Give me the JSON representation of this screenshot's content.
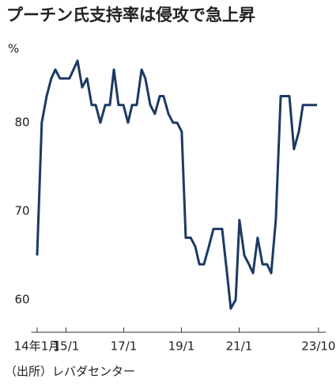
{
  "chart_data": {
    "type": "line",
    "title": "プーチン氏支持率は侵攻で急上昇",
    "y_label": "%",
    "source": "（出所）レバダセンター",
    "x": [
      2014.0,
      2014.16,
      2014.33,
      2014.49,
      2014.63,
      2014.79,
      2014.96,
      2015.12,
      2015.26,
      2015.4,
      2015.56,
      2015.73,
      2015.89,
      2016.03,
      2016.19,
      2016.36,
      2016.52,
      2016.66,
      2016.82,
      2016.99,
      2017.15,
      2017.29,
      2017.45,
      2017.62,
      2017.75,
      2017.92,
      2018.08,
      2018.25,
      2018.38,
      2018.55,
      2018.71,
      2018.85,
      2019.01,
      2019.15,
      2019.32,
      2019.48,
      2019.62,
      2019.78,
      2019.95,
      2020.11,
      2020.27,
      2020.41,
      2020.58,
      2020.71,
      2020.88,
      2021.01,
      2021.18,
      2021.34,
      2021.48,
      2021.64,
      2021.81,
      2021.97,
      2022.11,
      2022.27,
      2022.44,
      2022.58,
      2022.74,
      2022.9,
      2023.07,
      2023.21,
      2023.37,
      2023.53,
      2023.7
    ],
    "series": [
      {
        "name": "支持率",
        "color": "#1b3a63",
        "values": [
          65,
          80,
          83,
          85,
          86,
          85,
          85,
          85,
          86,
          87,
          84,
          85,
          82,
          82,
          80,
          82,
          82,
          86,
          82,
          82,
          80,
          82,
          82,
          86,
          85,
          82,
          81,
          83,
          83,
          81,
          80,
          80,
          79,
          67,
          67,
          66,
          64,
          64,
          66,
          68,
          68,
          68,
          63,
          59,
          60,
          69,
          65,
          64,
          63,
          67,
          64,
          64,
          63,
          69,
          83,
          83,
          83,
          77,
          79,
          82,
          82,
          82,
          82
        ]
      }
    ],
    "xlim": [
      2013.85,
      2024.0
    ],
    "xticks": [
      {
        "value": 2014,
        "label": "14年1月"
      },
      {
        "value": 2015,
        "label": "15/1"
      },
      {
        "value": 2017,
        "label": "17/1"
      },
      {
        "value": 2019,
        "label": "19/1"
      },
      {
        "value": 2021,
        "label": "21/1"
      },
      {
        "value": 2023.75,
        "label": "23/10"
      }
    ],
    "ylim": [
      56.5,
      88.5
    ],
    "yticks": [
      60,
      70,
      80
    ],
    "grid": false
  }
}
